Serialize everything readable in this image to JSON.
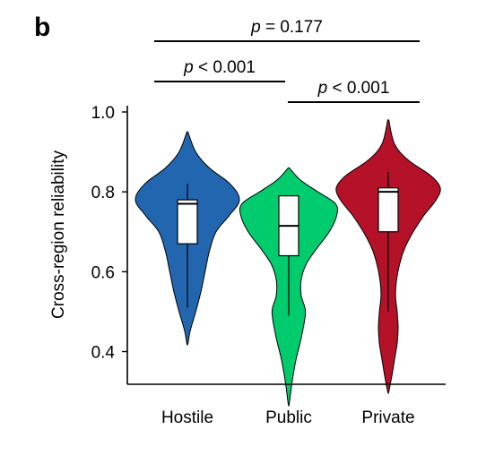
{
  "panel_label": "b",
  "chart_data": {
    "type": "violin",
    "title": "",
    "xlabel": "",
    "ylabel": "Cross-region reliability",
    "categories": [
      "Hostile",
      "Public",
      "Private"
    ],
    "ylim": [
      0.28,
      1.0
    ],
    "yticks": [
      "1.0",
      "0.8",
      "0.6",
      "0.4"
    ],
    "ytick_values": [
      1.0,
      0.8,
      0.6,
      0.4
    ],
    "grid": false,
    "colors": [
      "#2266b0",
      "#00cc6e",
      "#b5122a"
    ],
    "series": [
      {
        "category": "Hostile",
        "range": [
          0.42,
          0.95
        ],
        "box": {
          "q1": 0.67,
          "median": 0.77,
          "q3": 0.78,
          "whisker_low": 0.51,
          "whisker_high": 0.82
        },
        "density": [
          [
            0.42,
            0.01
          ],
          [
            0.45,
            0.05
          ],
          [
            0.5,
            0.16
          ],
          [
            0.55,
            0.26
          ],
          [
            0.6,
            0.34
          ],
          [
            0.65,
            0.42
          ],
          [
            0.7,
            0.55
          ],
          [
            0.74,
            0.8
          ],
          [
            0.78,
            1.0
          ],
          [
            0.82,
            0.82
          ],
          [
            0.86,
            0.42
          ],
          [
            0.9,
            0.16
          ],
          [
            0.95,
            0.01
          ]
        ]
      },
      {
        "category": "Public",
        "range": [
          0.27,
          0.86
        ],
        "box": {
          "q1": 0.64,
          "median": 0.715,
          "q3": 0.79,
          "whisker_low": 0.49,
          "whisker_high": 0.79
        },
        "density": [
          [
            0.27,
            0.01
          ],
          [
            0.32,
            0.06
          ],
          [
            0.38,
            0.14
          ],
          [
            0.44,
            0.25
          ],
          [
            0.5,
            0.32
          ],
          [
            0.54,
            0.24
          ],
          [
            0.58,
            0.24
          ],
          [
            0.62,
            0.34
          ],
          [
            0.66,
            0.55
          ],
          [
            0.7,
            0.78
          ],
          [
            0.74,
            0.92
          ],
          [
            0.77,
            0.9
          ],
          [
            0.8,
            0.56
          ],
          [
            0.83,
            0.22
          ],
          [
            0.86,
            0.01
          ]
        ]
      },
      {
        "category": "Private",
        "range": [
          0.3,
          0.98
        ],
        "box": {
          "q1": 0.7,
          "median": 0.8,
          "q3": 0.81,
          "whisker_low": 0.5,
          "whisker_high": 0.85
        },
        "density": [
          [
            0.3,
            0.01
          ],
          [
            0.34,
            0.07
          ],
          [
            0.38,
            0.12
          ],
          [
            0.42,
            0.17
          ],
          [
            0.46,
            0.19
          ],
          [
            0.5,
            0.17
          ],
          [
            0.54,
            0.14
          ],
          [
            0.58,
            0.16
          ],
          [
            0.62,
            0.22
          ],
          [
            0.66,
            0.32
          ],
          [
            0.7,
            0.48
          ],
          [
            0.74,
            0.68
          ],
          [
            0.78,
            0.92
          ],
          [
            0.81,
            1.0
          ],
          [
            0.84,
            0.82
          ],
          [
            0.88,
            0.38
          ],
          [
            0.92,
            0.12
          ],
          [
            0.98,
            0.01
          ]
        ]
      }
    ],
    "annotations": [
      {
        "text": "p = 0.177",
        "from": "Hostile",
        "to": "Private",
        "level": 3
      },
      {
        "text": "p < 0.001",
        "from": "Hostile",
        "to": "Public",
        "level": 2
      },
      {
        "text": "p < 0.001",
        "from": "Public",
        "to": "Private",
        "level": 1
      }
    ]
  }
}
